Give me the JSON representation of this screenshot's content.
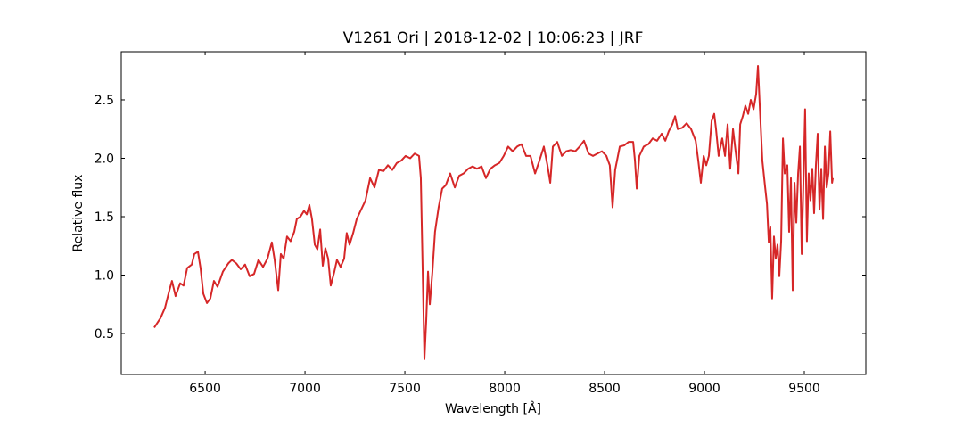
{
  "chart_data": {
    "type": "line",
    "title": "V1261 Ori | 2018-12-02 | 10:06:23 | JRF",
    "x_label": "Wavelength [Å]",
    "y_label": "Relative flux",
    "xlim": [
      6080,
      9808
    ],
    "ylim": [
      0.149,
      2.912
    ],
    "xticks": [
      6500,
      7000,
      7500,
      8000,
      8500,
      9000,
      9500
    ],
    "yticks": [
      0.5,
      {
        "value": 1,
        "label": "1.0"
      },
      1.5,
      {
        "value": 2,
        "label": "2.0"
      },
      2.5
    ],
    "tick_direction": "in",
    "grid": false,
    "series": [
      {
        "color": "#d62728",
        "x": [
          6245,
          6276,
          6299,
          6321,
          6334,
          6352,
          6375,
          6392,
          6410,
          6433,
          6446,
          6464,
          6477,
          6491,
          6509,
          6526,
          6544,
          6562,
          6589,
          6616,
          6634,
          6656,
          6678,
          6700,
          6723,
          6745,
          6767,
          6790,
          6812,
          6834,
          6848,
          6866,
          6879,
          6893,
          6910,
          6928,
          6946,
          6959,
          6977,
          6995,
          7009,
          7022,
          7035,
          7049,
          7062,
          7076,
          7089,
          7102,
          7116,
          7129,
          7147,
          7160,
          7178,
          7196,
          7209,
          7223,
          7241,
          7259,
          7281,
          7303,
          7326,
          7348,
          7370,
          7393,
          7415,
          7437,
          7460,
          7482,
          7504,
          7527,
          7549,
          7571,
          7580,
          7589,
          7598,
          7607,
          7616,
          7625,
          7638,
          7651,
          7669,
          7687,
          7705,
          7727,
          7750,
          7772,
          7794,
          7817,
          7839,
          7861,
          7884,
          7906,
          7928,
          7951,
          7973,
          7995,
          8017,
          8040,
          8062,
          8084,
          8107,
          8129,
          8152,
          8174,
          8196,
          8214,
          8228,
          8241,
          8263,
          8286,
          8308,
          8330,
          8353,
          8375,
          8397,
          8420,
          8442,
          8464,
          8487,
          8509,
          8526,
          8540,
          8553,
          8576,
          8598,
          8620,
          8643,
          8652,
          8661,
          8674,
          8696,
          8719,
          8741,
          8763,
          8786,
          8804,
          8821,
          8839,
          8853,
          8866,
          8888,
          8911,
          8933,
          8956,
          8969,
          8982,
          8996,
          9009,
          9022,
          9036,
          9049,
          9058,
          9071,
          9089,
          9103,
          9116,
          9129,
          9143,
          9156,
          9170,
          9179,
          9192,
          9205,
          9219,
          9232,
          9246,
          9259,
          9268,
          9277,
          9290,
          9304,
          9313,
          9322,
          9330,
          9339,
          9348,
          9357,
          9366,
          9375,
          9384,
          9393,
          9402,
          9415,
          9424,
          9433,
          9442,
          9451,
          9460,
          9469,
          9478,
          9487,
          9496,
          9504,
          9513,
          9522,
          9531,
          9540,
          9549,
          9558,
          9567,
          9576,
          9585,
          9594,
          9603,
          9612,
          9621,
          9630,
          9639,
          9643
        ],
        "values": [
          0.55,
          0.63,
          0.72,
          0.87,
          0.95,
          0.82,
          0.93,
          0.91,
          1.06,
          1.09,
          1.18,
          1.2,
          1.06,
          0.84,
          0.76,
          0.8,
          0.95,
          0.9,
          1.03,
          1.1,
          1.13,
          1.1,
          1.05,
          1.09,
          0.99,
          1.01,
          1.13,
          1.07,
          1.14,
          1.28,
          1.13,
          0.87,
          1.18,
          1.14,
          1.33,
          1.29,
          1.37,
          1.48,
          1.5,
          1.55,
          1.52,
          1.6,
          1.48,
          1.26,
          1.22,
          1.39,
          1.08,
          1.23,
          1.14,
          0.91,
          1.03,
          1.13,
          1.07,
          1.14,
          1.36,
          1.26,
          1.36,
          1.48,
          1.56,
          1.64,
          1.83,
          1.75,
          1.9,
          1.89,
          1.94,
          1.9,
          1.96,
          1.98,
          2.02,
          2.0,
          2.04,
          2.02,
          1.83,
          1.06,
          0.28,
          0.61,
          1.03,
          0.75,
          1.03,
          1.37,
          1.58,
          1.74,
          1.77,
          1.87,
          1.75,
          1.85,
          1.87,
          1.91,
          1.93,
          1.91,
          1.93,
          1.83,
          1.91,
          1.94,
          1.96,
          2.02,
          2.1,
          2.06,
          2.1,
          2.12,
          2.02,
          2.02,
          1.87,
          1.98,
          2.1,
          1.94,
          1.79,
          2.1,
          2.14,
          2.02,
          2.06,
          2.07,
          2.06,
          2.1,
          2.15,
          2.04,
          2.02,
          2.04,
          2.06,
          2.02,
          1.94,
          1.58,
          1.9,
          2.1,
          2.11,
          2.14,
          2.14,
          1.98,
          1.74,
          2.02,
          2.1,
          2.12,
          2.17,
          2.15,
          2.21,
          2.15,
          2.23,
          2.29,
          2.36,
          2.25,
          2.26,
          2.3,
          2.25,
          2.15,
          1.98,
          1.79,
          2.02,
          1.94,
          2.02,
          2.32,
          2.38,
          2.25,
          2.02,
          2.17,
          2.02,
          2.29,
          1.91,
          2.25,
          2.06,
          1.87,
          2.29,
          2.36,
          2.45,
          2.38,
          2.5,
          2.42,
          2.55,
          2.79,
          2.45,
          1.98,
          1.75,
          1.61,
          1.28,
          1.41,
          0.8,
          1.33,
          1.14,
          1.26,
          0.99,
          1.29,
          2.17,
          1.87,
          1.94,
          1.37,
          1.83,
          0.87,
          1.79,
          1.45,
          1.87,
          2.1,
          1.18,
          1.83,
          2.42,
          1.29,
          1.87,
          1.64,
          1.91,
          1.53,
          1.94,
          2.21,
          1.56,
          1.91,
          1.48,
          2.1,
          1.75,
          1.87,
          2.23,
          1.79,
          1.83
        ]
      }
    ]
  }
}
